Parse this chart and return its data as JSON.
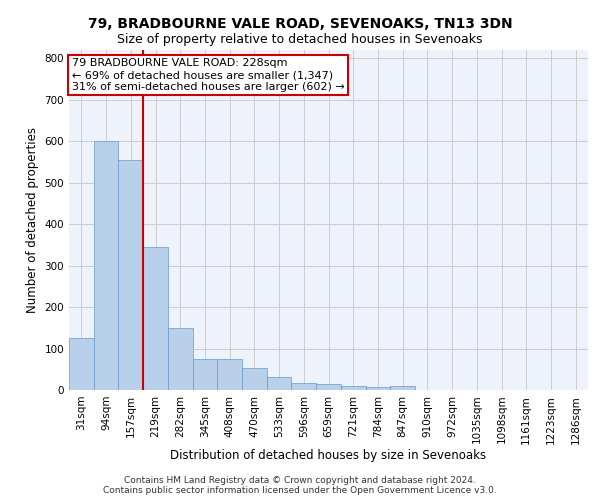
{
  "title1": "79, BRADBOURNE VALE ROAD, SEVENOAKS, TN13 3DN",
  "title2": "Size of property relative to detached houses in Sevenoaks",
  "xlabel": "Distribution of detached houses by size in Sevenoaks",
  "ylabel": "Number of detached properties",
  "categories": [
    "31sqm",
    "94sqm",
    "157sqm",
    "219sqm",
    "282sqm",
    "345sqm",
    "408sqm",
    "470sqm",
    "533sqm",
    "596sqm",
    "659sqm",
    "721sqm",
    "784sqm",
    "847sqm",
    "910sqm",
    "972sqm",
    "1035sqm",
    "1098sqm",
    "1161sqm",
    "1223sqm",
    "1286sqm"
  ],
  "values": [
    125,
    600,
    555,
    345,
    150,
    75,
    75,
    53,
    32,
    18,
    15,
    10,
    7,
    10,
    0,
    0,
    0,
    0,
    0,
    0,
    0
  ],
  "bar_color": "#b8d0ea",
  "bar_edge_color": "#6699cc",
  "vline_pos": 2.5,
  "vline_color": "#cc0000",
  "annotation_line1": "79 BRADBOURNE VALE ROAD: 228sqm",
  "annotation_line2": "← 69% of detached houses are smaller (1,347)",
  "annotation_line3": "31% of semi-detached houses are larger (602) →",
  "annotation_box_color": "#ffffff",
  "annotation_box_edge": "#cc0000",
  "ylim": [
    0,
    820
  ],
  "yticks": [
    0,
    100,
    200,
    300,
    400,
    500,
    600,
    700,
    800
  ],
  "grid_color": "#cccccc",
  "background_color": "#eef2fa",
  "footer": "Contains HM Land Registry data © Crown copyright and database right 2024.\nContains public sector information licensed under the Open Government Licence v3.0.",
  "title1_fontsize": 10,
  "title2_fontsize": 9,
  "axis_label_fontsize": 8.5,
  "tick_fontsize": 7.5,
  "footer_fontsize": 6.5,
  "annot_fontsize": 8
}
